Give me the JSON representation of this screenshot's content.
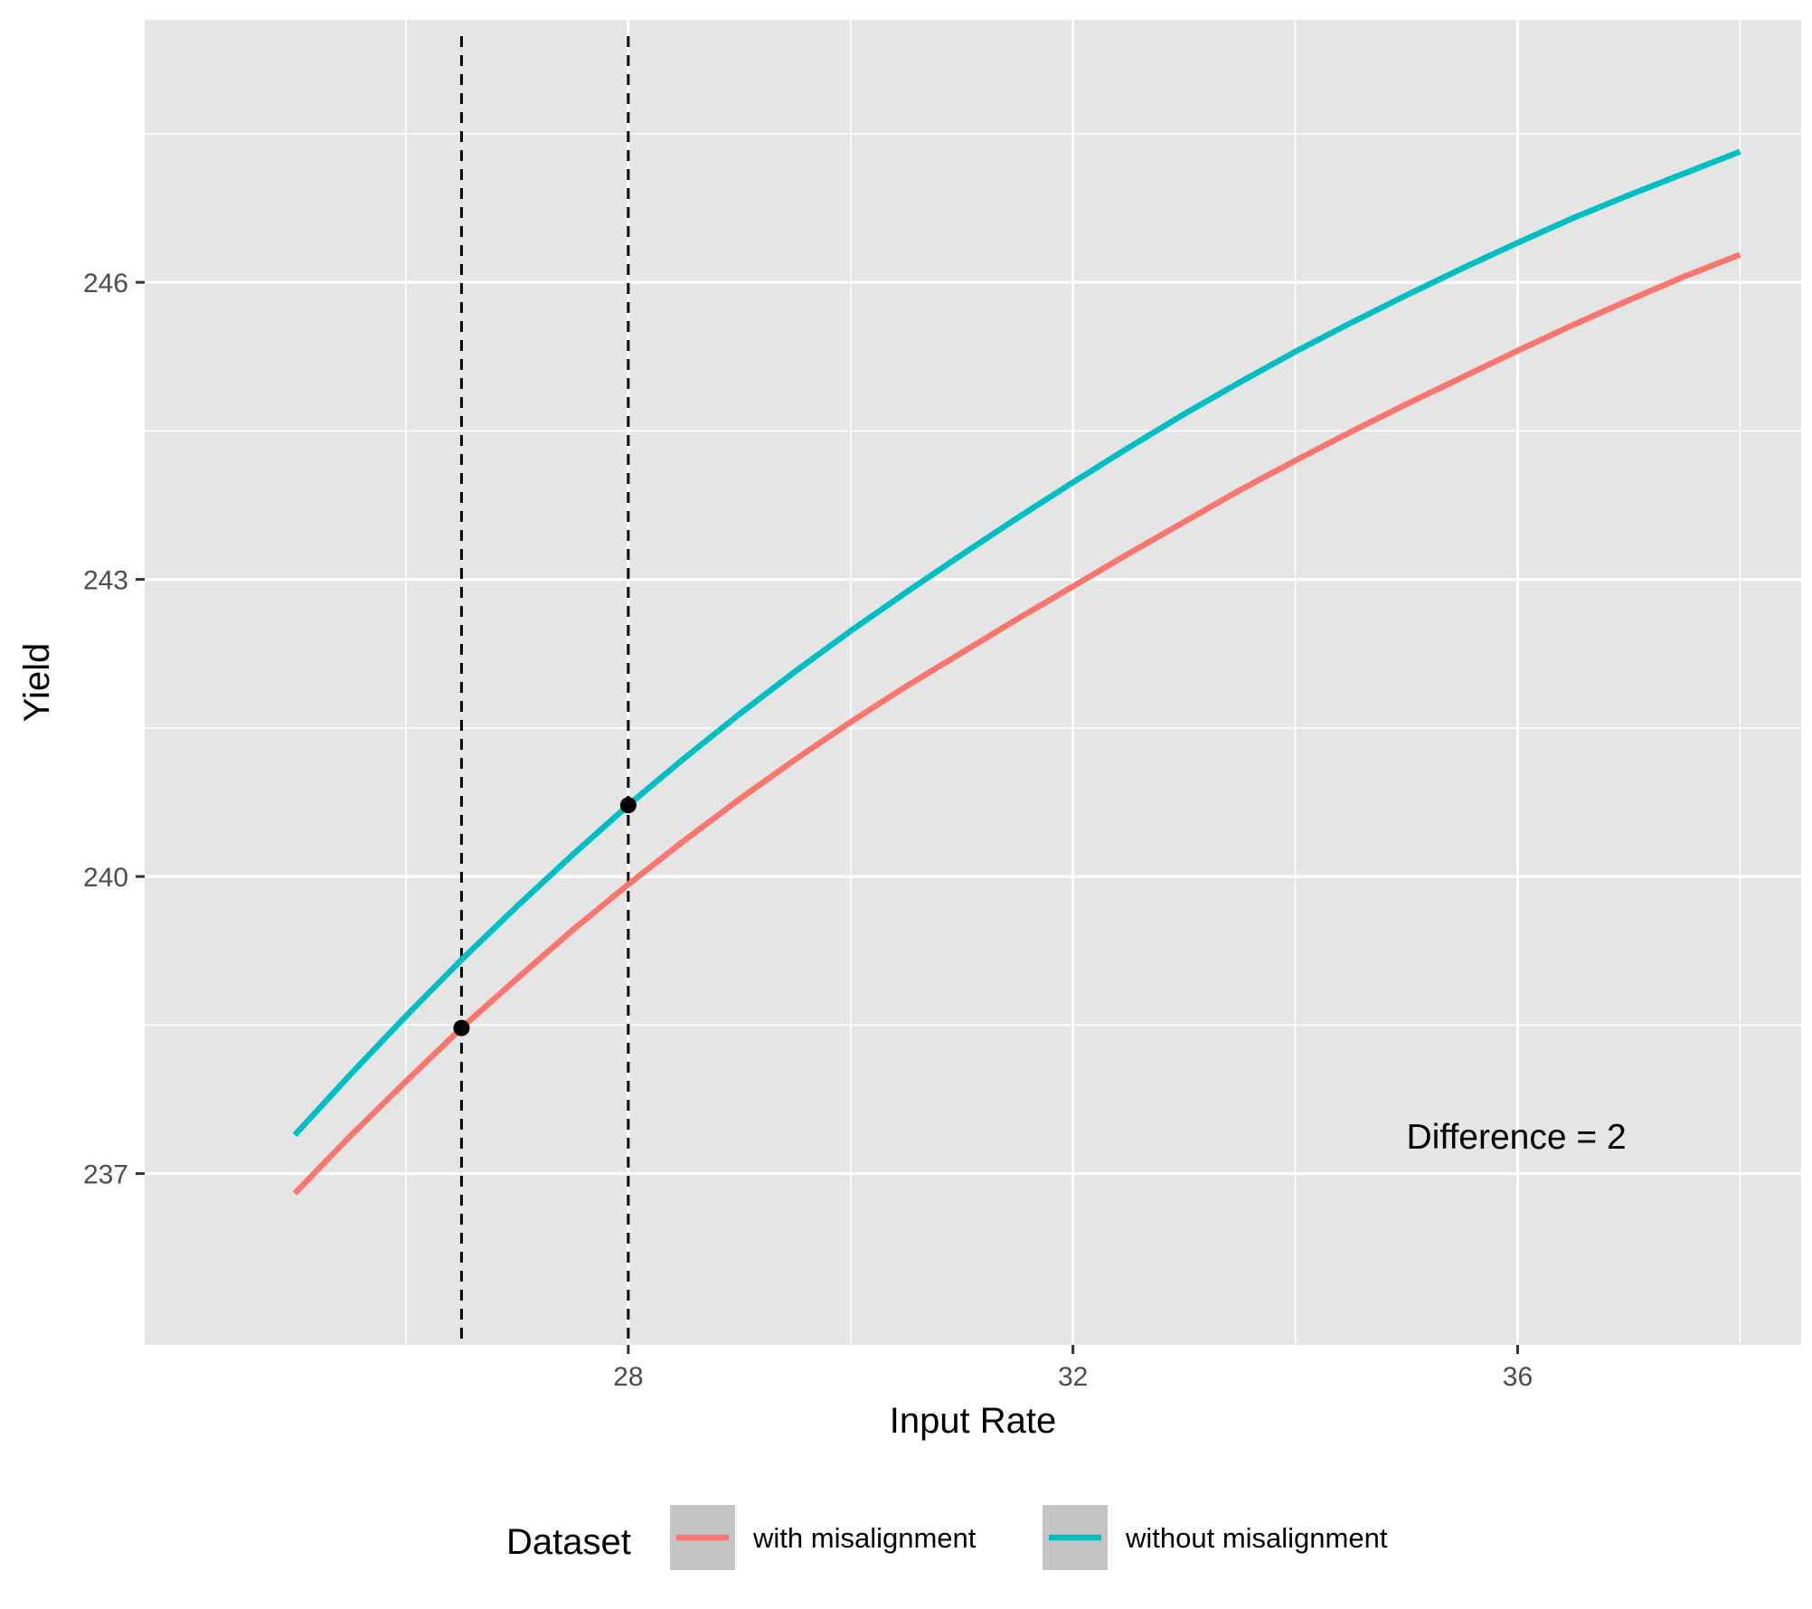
{
  "chart_data": {
    "type": "line",
    "xlabel": "Input Rate",
    "ylabel": "Yield",
    "xlim": [
      23.65,
      38.55
    ],
    "ylim": [
      235.27,
      248.65
    ],
    "x_ticks": [
      {
        "value": 28,
        "label": "28"
      },
      {
        "value": 32,
        "label": "32"
      },
      {
        "value": 36,
        "label": "36"
      }
    ],
    "y_ticks": [
      {
        "value": 237,
        "label": "237"
      },
      {
        "value": 240,
        "label": "240"
      },
      {
        "value": 243,
        "label": "243"
      },
      {
        "value": 246,
        "label": "246"
      }
    ],
    "x_minor_grid": [
      26,
      30,
      34,
      38
    ],
    "y_minor_grid": [
      238.5,
      241.5,
      244.5,
      247.5
    ],
    "grid": true,
    "legend": {
      "title": "Dataset",
      "position": "bottom"
    },
    "series": [
      {
        "name": "with misalignment",
        "color": "#F8766D",
        "x": [
          25.0,
          25.5,
          26.0,
          26.5,
          27.0,
          27.5,
          28.0,
          28.5,
          29.0,
          29.5,
          30.0,
          30.5,
          31.0,
          31.5,
          32.0,
          32.5,
          33.0,
          33.5,
          34.0,
          34.5,
          35.0,
          35.5,
          36.0,
          36.5,
          37.0,
          37.5,
          38.0
        ],
        "y": [
          236.8,
          237.38,
          237.93,
          238.47,
          238.97,
          239.46,
          239.92,
          240.36,
          240.78,
          241.18,
          241.56,
          241.92,
          242.26,
          242.6,
          242.93,
          243.26,
          243.58,
          243.9,
          244.2,
          244.49,
          244.77,
          245.04,
          245.31,
          245.57,
          245.82,
          246.06,
          246.28
        ]
      },
      {
        "name": "without misalignment",
        "color": "#00BFC4",
        "x": [
          25.0,
          25.5,
          26.0,
          26.5,
          27.0,
          27.5,
          28.0,
          28.5,
          29.0,
          29.5,
          30.0,
          30.5,
          31.0,
          31.5,
          32.0,
          32.5,
          33.0,
          33.5,
          34.0,
          34.5,
          35.0,
          35.5,
          36.0,
          36.5,
          37.0,
          37.5,
          38.0
        ],
        "y": [
          237.39,
          238.0,
          238.59,
          239.16,
          239.7,
          240.22,
          240.72,
          241.19,
          241.64,
          242.07,
          242.48,
          242.87,
          243.25,
          243.62,
          243.98,
          244.33,
          244.67,
          244.99,
          245.3,
          245.59,
          245.87,
          246.14,
          246.4,
          246.65,
          246.88,
          247.1,
          247.32
        ]
      }
    ],
    "reference_lines": [
      {
        "axis": "x",
        "value": 26.5,
        "style": "dashed",
        "color": "#000000"
      },
      {
        "axis": "x",
        "value": 28.0,
        "style": "dashed",
        "color": "#000000"
      }
    ],
    "points": [
      {
        "x": 26.5,
        "y": 238.47,
        "color": "#000000"
      },
      {
        "x": 28.0,
        "y": 240.72,
        "color": "#000000"
      }
    ],
    "annotations": [
      {
        "text": "Difference = 2",
        "x": 35.0,
        "y": 237.38
      }
    ]
  },
  "style": {
    "panel_background": "#E5E5E5",
    "grid_color": "#FFFFFF",
    "legend_key_background": "#C4C4C4",
    "tick_color": "#333333"
  }
}
